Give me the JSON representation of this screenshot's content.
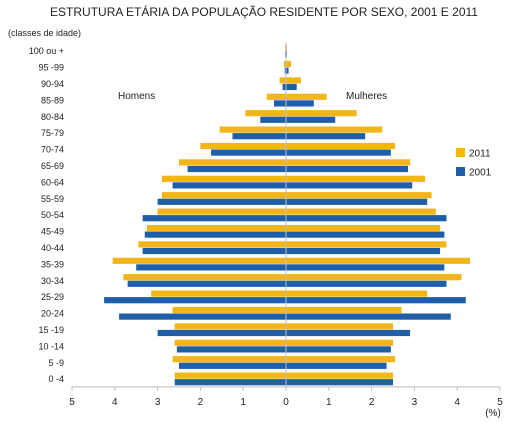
{
  "chart_data": {
    "type": "bar",
    "orientation": "horizontal-pyramid",
    "title": "ESTRUTURA ETÁRIA DA POPULAÇÃO RESIDENTE POR SEXO, 2001 E 2011",
    "ylabel": "(classes de idade)",
    "xlabel": "(%)",
    "left_label": "Homens",
    "right_label": "Mulheres",
    "xlim": [
      -5,
      5
    ],
    "x_ticks": [
      "5",
      "4",
      "3",
      "2",
      "1",
      "0",
      "1",
      "2",
      "3",
      "4",
      "5"
    ],
    "categories": [
      "100 ou +",
      "95 -99",
      "90-94",
      "85-89",
      "80-84",
      "75-79",
      "70-74",
      "65-69",
      "60-64",
      "55-59",
      "50-54",
      "45-49",
      "40-44",
      "35-39",
      "30-34",
      "25-29",
      "20-24",
      "15 -19",
      "10 -14",
      "5 -9",
      "0 -4"
    ],
    "legend_position": "right",
    "series": [
      {
        "name": "2011",
        "color": "#f2b619",
        "homens": [
          0.01,
          0.05,
          0.15,
          0.45,
          0.95,
          1.55,
          2.0,
          2.5,
          2.9,
          2.9,
          3.0,
          3.25,
          3.45,
          4.05,
          3.8,
          3.15,
          2.65,
          2.6,
          2.6,
          2.65,
          2.6
        ],
        "mulheres": [
          0.02,
          0.12,
          0.35,
          0.95,
          1.65,
          2.25,
          2.55,
          2.9,
          3.25,
          3.4,
          3.5,
          3.6,
          3.75,
          4.3,
          4.1,
          3.3,
          2.7,
          2.5,
          2.5,
          2.55,
          2.5
        ]
      },
      {
        "name": "2001",
        "color": "#1f5fa8",
        "homens": [
          0.01,
          0.03,
          0.08,
          0.28,
          0.6,
          1.25,
          1.75,
          2.3,
          2.65,
          3.0,
          3.35,
          3.3,
          3.35,
          3.5,
          3.7,
          4.25,
          3.9,
          3.0,
          2.55,
          2.5,
          2.6
        ],
        "mulheres": [
          0.02,
          0.06,
          0.25,
          0.65,
          1.15,
          1.85,
          2.45,
          2.85,
          2.95,
          3.3,
          3.75,
          3.7,
          3.6,
          3.7,
          3.75,
          4.2,
          3.85,
          2.9,
          2.45,
          2.35,
          2.5
        ]
      }
    ]
  }
}
